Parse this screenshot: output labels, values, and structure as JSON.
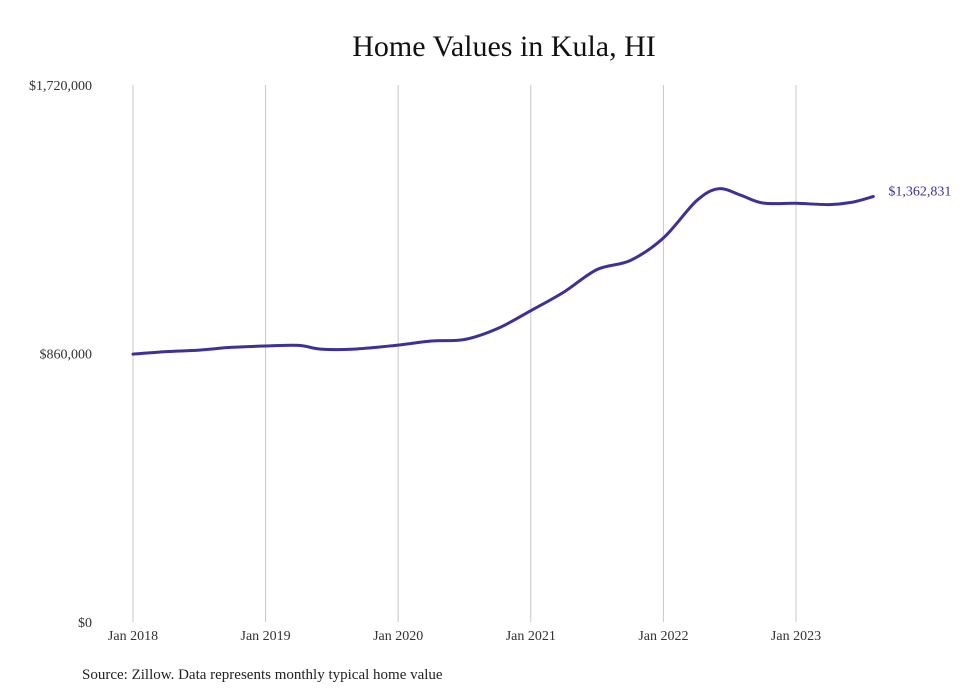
{
  "chart_data": {
    "type": "line",
    "title": "Home Values in Kula, HI",
    "xlabel": "",
    "ylabel": "",
    "ylim": [
      0,
      1720000
    ],
    "y_ticks": [
      {
        "value": 0,
        "label": "$0"
      },
      {
        "value": 860000,
        "label": "$860,000"
      },
      {
        "value": 1720000,
        "label": "$1,720,000"
      }
    ],
    "x_ticks": [
      {
        "value": "2018-01",
        "label": "Jan 2018"
      },
      {
        "value": "2019-01",
        "label": "Jan 2019"
      },
      {
        "value": "2020-01",
        "label": "Jan 2020"
      },
      {
        "value": "2021-01",
        "label": "Jan 2021"
      },
      {
        "value": "2022-01",
        "label": "Jan 2022"
      },
      {
        "value": "2023-01",
        "label": "Jan 2023"
      }
    ],
    "grid": "vertical",
    "series": [
      {
        "color": "#3b3196",
        "end_label": "$1,362,831",
        "points": [
          {
            "x": "2018-01",
            "y": 858000
          },
          {
            "x": "2018-04",
            "y": 866000
          },
          {
            "x": "2018-07",
            "y": 871000
          },
          {
            "x": "2018-10",
            "y": 880000
          },
          {
            "x": "2019-01",
            "y": 884000
          },
          {
            "x": "2019-04",
            "y": 886000
          },
          {
            "x": "2019-06",
            "y": 874000
          },
          {
            "x": "2019-09",
            "y": 874000
          },
          {
            "x": "2020-01",
            "y": 887000
          },
          {
            "x": "2020-04",
            "y": 900000
          },
          {
            "x": "2020-07",
            "y": 905000
          },
          {
            "x": "2020-10",
            "y": 940000
          },
          {
            "x": "2021-01",
            "y": 997000
          },
          {
            "x": "2021-04",
            "y": 1057000
          },
          {
            "x": "2021-07",
            "y": 1129000
          },
          {
            "x": "2021-10",
            "y": 1158000
          },
          {
            "x": "2022-01",
            "y": 1230000
          },
          {
            "x": "2022-04",
            "y": 1349000
          },
          {
            "x": "2022-06",
            "y": 1388000
          },
          {
            "x": "2022-08",
            "y": 1367000
          },
          {
            "x": "2022-10",
            "y": 1342000
          },
          {
            "x": "2023-01",
            "y": 1341000
          },
          {
            "x": "2023-04",
            "y": 1337000
          },
          {
            "x": "2023-06",
            "y": 1344000
          },
          {
            "x": "2023-08",
            "y": 1362831
          }
        ]
      }
    ]
  },
  "footer": {
    "source": "Source: Zillow. Data represents monthly typical home value"
  }
}
